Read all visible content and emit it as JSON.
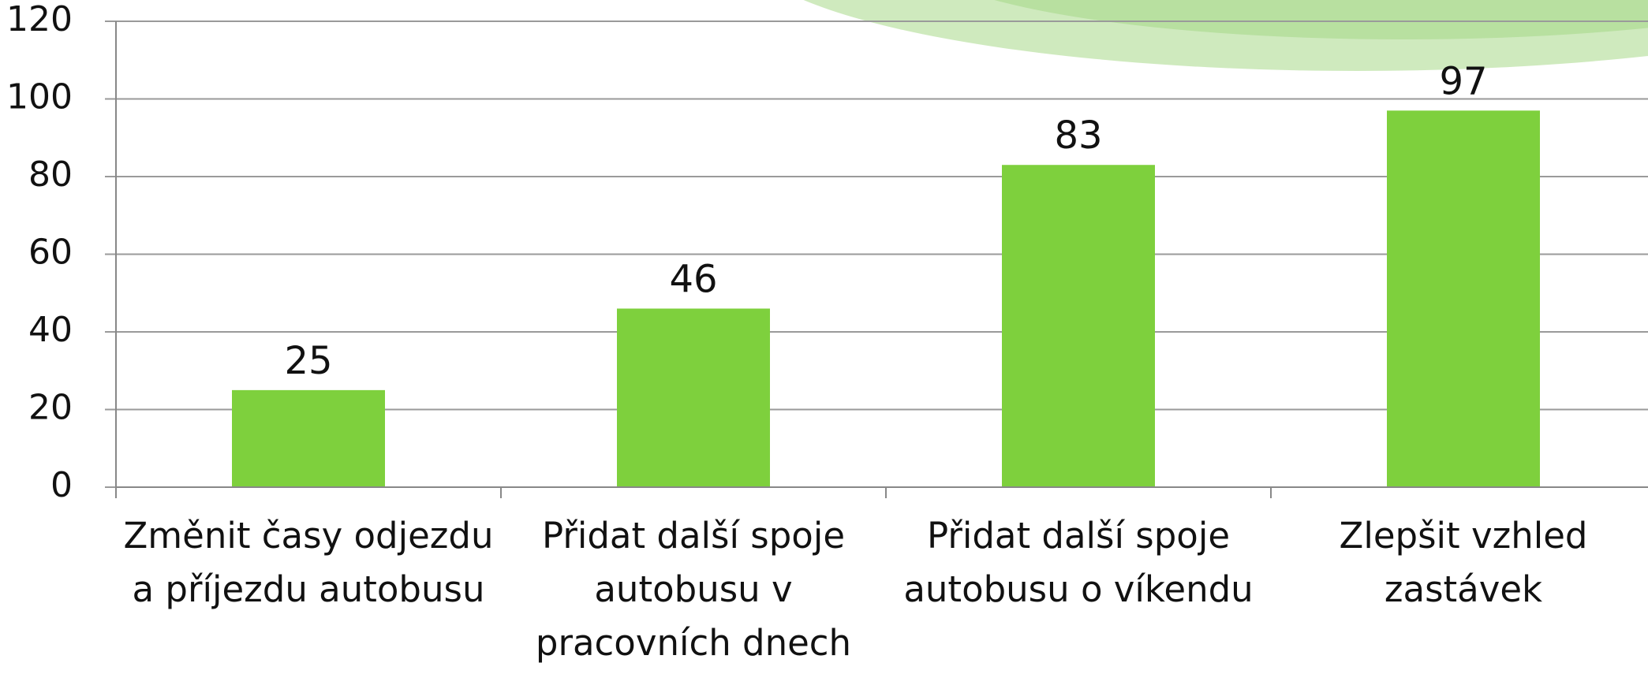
{
  "chart_data": {
    "type": "bar",
    "categories": [
      "Změnit časy odjezdu\na příjezdu autobusu",
      "Přidat další spoje\nautobusu v\npracovních dnech",
      "Přidat další spoje\nautobusu o víkendu",
      "Zlepšit vzhled\nzastávek"
    ],
    "values": [
      25,
      46,
      83,
      97
    ],
    "color": "#7ed03d",
    "ylim": [
      0,
      120
    ],
    "yticks": [
      0,
      20,
      40,
      60,
      80,
      100,
      120
    ],
    "grid": true
  }
}
